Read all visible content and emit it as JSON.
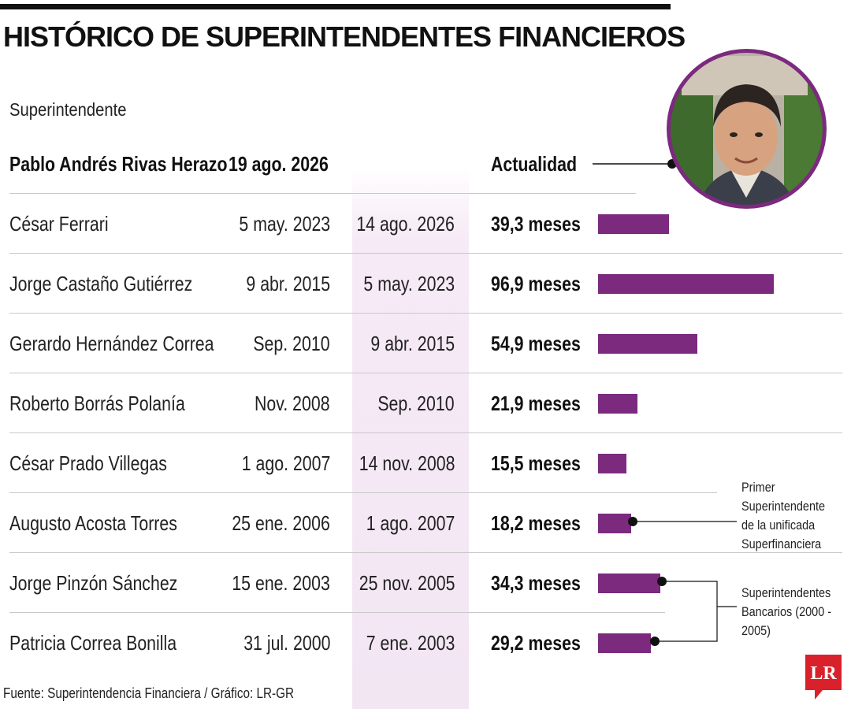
{
  "title": "HISTÓRICO DE SUPERINTENDENTES FINANCIEROS",
  "column_label": "Superintendente",
  "current": {
    "name": "Pablo Andrés Rivas Herazo",
    "start": "19  ago. 2026",
    "status": "Actualidad"
  },
  "chart_data": {
    "type": "bar",
    "orientation": "horizontal",
    "title": "HISTÓRICO DE SUPERINTENDENTES FINANCIEROS",
    "unit": "meses",
    "categories": [
      "César Ferrari",
      "Jorge Castaño Gutiérrez",
      "Gerardo Hernández Correa",
      "Roberto Borrás Polanía",
      "César Prado Villegas",
      "Augusto Acosta Torres",
      "Jorge Pinzón Sánchez",
      "Patricia Correa Bonilla"
    ],
    "values": [
      39.3,
      96.9,
      54.9,
      21.9,
      15.5,
      18.2,
      34.3,
      29.2
    ],
    "rows": [
      {
        "name": "César Ferrari",
        "start": "5 may. 2023",
        "end": "14 ago. 2026",
        "duration": 39.3,
        "label": "39,3 meses"
      },
      {
        "name": "Jorge Castaño Gutiérrez",
        "start": "9 abr. 2015",
        "end": "5 may. 2023",
        "duration": 96.9,
        "label": "96,9 meses"
      },
      {
        "name": "Gerardo Hernández Correa",
        "start": "Sep. 2010",
        "end": "9 abr. 2015",
        "duration": 54.9,
        "label": "54,9 meses"
      },
      {
        "name": "Roberto Borrás Polanía",
        "start": "Nov. 2008",
        "end": "Sep. 2010",
        "duration": 21.9,
        "label": "21,9 meses"
      },
      {
        "name": "César Prado Villegas",
        "start": "1 ago. 2007",
        "end": "14 nov. 2008",
        "duration": 15.5,
        "label": "15,5 meses"
      },
      {
        "name": "Augusto Acosta Torres",
        "start": "25 ene. 2006",
        "end": "1 ago. 2007",
        "duration": 18.2,
        "label": "18,2 meses"
      },
      {
        "name": "Jorge Pinzón Sánchez",
        "start": "15 ene. 2003",
        "end": "25 nov. 2005",
        "duration": 34.3,
        "label": "34,3 meses"
      },
      {
        "name": "Patricia Correa Bonilla",
        "start": "31 jul. 2000",
        "end": "7 ene. 2003",
        "duration": 29.2,
        "label": "29,2 meses"
      }
    ],
    "bar_color": "#7b2a7e"
  },
  "notes": {
    "first_unified": [
      "Primer",
      "Superintendente",
      "de la unificada",
      "Superfinanciera"
    ],
    "banking": [
      "Superintendentes",
      "Bancarios (2000 -",
      "2005)"
    ]
  },
  "source": "Fuente: Superintendencia Financiera / Gráfico: LR-GR",
  "logo_text": "LR",
  "colors": {
    "accent": "#7b2a7e",
    "logo": "#d8212b"
  }
}
